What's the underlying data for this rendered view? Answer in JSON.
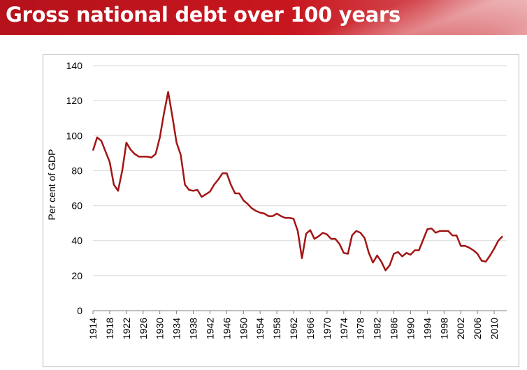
{
  "header": {
    "title": "Gross national debt over 100 years"
  },
  "colors": {
    "banner": "#c8161f",
    "line": "#a31515",
    "grid": "#d9d9d9"
  },
  "chart_data": {
    "type": "line",
    "title": "",
    "xlabel": "",
    "ylabel": "Per cent of GDP",
    "ylim": [
      0,
      140
    ],
    "yticks": [
      0,
      20,
      40,
      60,
      80,
      100,
      120,
      140
    ],
    "xlim": [
      1914,
      2013
    ],
    "xticks": [
      1914,
      1918,
      1922,
      1926,
      1930,
      1934,
      1938,
      1942,
      1946,
      1950,
      1954,
      1958,
      1962,
      1966,
      1970,
      1974,
      1978,
      1982,
      1986,
      1990,
      1994,
      1998,
      2002,
      2006,
      2010
    ],
    "grid": "horizontal",
    "legend": "none",
    "series": [
      {
        "x": [
          1914,
          1915,
          1916,
          1917,
          1918,
          1919,
          1920,
          1921,
          1922,
          1923,
          1924,
          1925,
          1926,
          1927,
          1928,
          1929,
          1930,
          1931,
          1932,
          1933,
          1934,
          1935,
          1936,
          1937,
          1938,
          1939,
          1940,
          1941,
          1942,
          1943,
          1944,
          1945,
          1946,
          1947,
          1948,
          1949,
          1950,
          1951,
          1952,
          1953,
          1954,
          1955,
          1956,
          1957,
          1958,
          1959,
          1960,
          1961,
          1962,
          1963,
          1964,
          1965,
          1966,
          1967,
          1968,
          1969,
          1970,
          1971,
          1972,
          1973,
          1974,
          1975,
          1976,
          1977,
          1978,
          1979,
          1980,
          1981,
          1982,
          1983,
          1984,
          1985,
          1986,
          1987,
          1988,
          1989,
          1990,
          1991,
          1992,
          1993,
          1994,
          1995,
          1996,
          1997,
          1998,
          1999,
          2000,
          2001,
          2002,
          2003,
          2004,
          2005,
          2006,
          2007,
          2008,
          2009,
          2010,
          2011,
          2012
        ],
        "values": [
          91.5,
          99,
          97,
          91,
          85,
          72,
          68.5,
          80,
          96,
          92,
          89.5,
          88,
          88,
          88,
          87.5,
          89.5,
          99,
          113,
          125,
          111,
          96,
          89,
          72,
          69,
          68.5,
          69,
          65,
          66.5,
          68,
          72,
          75,
          78.5,
          78.5,
          72,
          67,
          67,
          63,
          61,
          58.5,
          57,
          56,
          55.5,
          54,
          54,
          55.5,
          54,
          53,
          53,
          52.5,
          45.5,
          30,
          44,
          46,
          41,
          42.5,
          44.5,
          43.5,
          41,
          41,
          38,
          33,
          32.5,
          43,
          45.5,
          44.5,
          41.5,
          33,
          27.5,
          31.5,
          28,
          23,
          26,
          32.5,
          33.5,
          31,
          33,
          32,
          34.5,
          34.5,
          40.5,
          46.5,
          47,
          44.5,
          45.5,
          45.5,
          45.5,
          43,
          43,
          37,
          37,
          36,
          34.5,
          32.5,
          28.5,
          28,
          31.5,
          35.5,
          40,
          42.5
        ]
      }
    ]
  }
}
